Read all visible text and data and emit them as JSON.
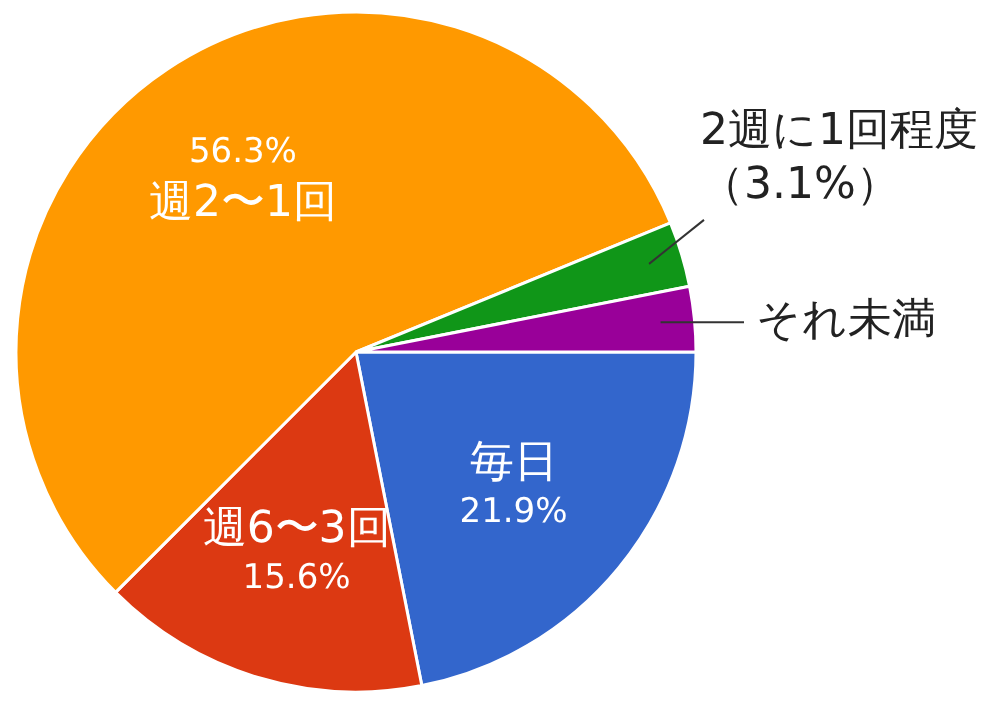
{
  "chart_data": {
    "type": "pie",
    "categories": [
      "毎日",
      "週6〜3回",
      "週2〜1回",
      "2週に1回程度",
      "それ未満"
    ],
    "values": [
      21.9,
      15.6,
      56.3,
      3.1,
      3.1
    ],
    "colors": [
      "#3366cc",
      "#dc3912",
      "#ff9900",
      "#109618",
      "#990099"
    ],
    "value_labels": [
      "21.9%",
      "15.6%",
      "56.3%",
      "（3.1%）",
      null
    ]
  }
}
